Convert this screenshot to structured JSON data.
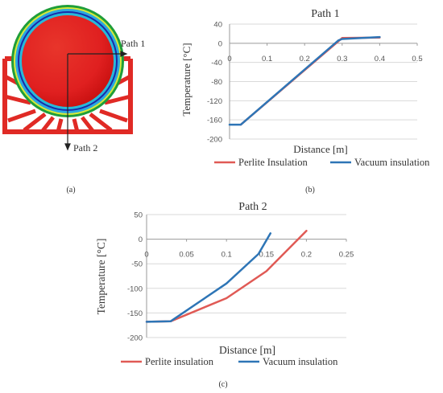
{
  "figure": {
    "image_labels": {
      "path1": "Path 1",
      "path2": "Path 2"
    },
    "captions": {
      "a": "(a)",
      "b": "(b)",
      "c": "(c)"
    },
    "colors": {
      "red": "#e8312a",
      "blue": "#2c7fc4",
      "perlite": "#e05a55",
      "vacuum": "#2e75b6"
    }
  },
  "chart_data": [
    {
      "type": "line",
      "title": "Path 1",
      "xlabel": "Distance [m]",
      "ylabel": "Temperature [°C]",
      "xlim": [
        0,
        0.5
      ],
      "ylim": [
        -200,
        40
      ],
      "xticks": [
        "0",
        "0.1",
        "0.2",
        "0.3",
        "0.4",
        "0.5"
      ],
      "yticks": [
        "40",
        "0",
        "-40",
        "-80",
        "-120",
        "-160",
        "-200"
      ],
      "legend_position": "bottom",
      "grid": true,
      "series": [
        {
          "name": "Perlite Insulation",
          "color": "#e05a55",
          "x": [
            0.03,
            0.3,
            0.4
          ],
          "y": [
            -170,
            11,
            12
          ]
        },
        {
          "name": "Vacuum insulation",
          "color": "#2e75b6",
          "x": [
            0,
            0.03,
            0.29,
            0.3,
            0.4
          ],
          "y": [
            -170,
            -170,
            6,
            9,
            13
          ]
        }
      ]
    },
    {
      "type": "line",
      "title": "Path 2",
      "xlabel": "Distance [m]",
      "ylabel": "Temperature [°C]",
      "xlim": [
        0,
        0.25
      ],
      "ylim": [
        -200,
        50
      ],
      "xticks": [
        "0",
        "0.05",
        "0.1",
        "0.15",
        "0.2",
        "0.25"
      ],
      "yticks": [
        "50",
        "0",
        "-50",
        "-100",
        "-150",
        "-200"
      ],
      "legend_position": "bottom",
      "grid": true,
      "series": [
        {
          "name": "Perlite insulation",
          "color": "#e05a55",
          "x": [
            0,
            0.03,
            0.1,
            0.15,
            0.2
          ],
          "y": [
            -168,
            -167,
            -120,
            -65,
            17
          ]
        },
        {
          "name": "Vacuum insulation",
          "color": "#2e75b6",
          "x": [
            0,
            0.03,
            0.1,
            0.14,
            0.155
          ],
          "y": [
            -168,
            -167,
            -90,
            -30,
            12
          ]
        }
      ]
    }
  ]
}
